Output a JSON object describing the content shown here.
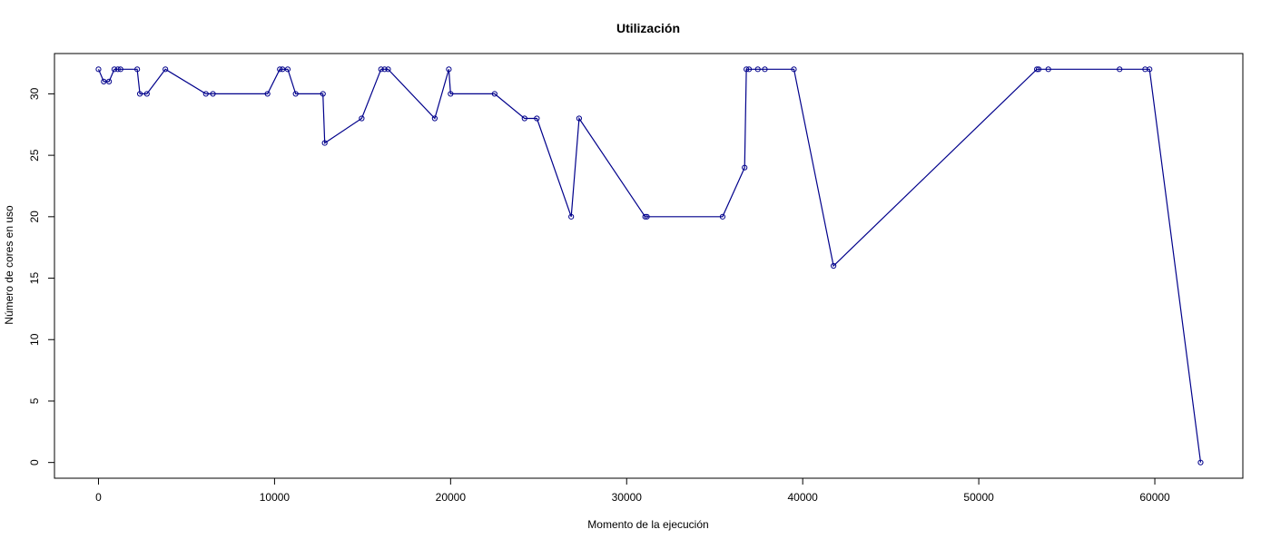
{
  "chart_data": {
    "type": "line",
    "title": "Utilización",
    "xlabel": "Momento de la ejecución",
    "ylabel": "Número de cores en uso",
    "xlim": [
      -2500,
      65000
    ],
    "ylim": [
      -1.28,
      33.28
    ],
    "x_ticks": [
      0,
      10000,
      20000,
      30000,
      40000,
      50000,
      60000
    ],
    "x_tick_labels": [
      "0",
      "10000",
      "20000",
      "30000",
      "40000",
      "50000",
      "60000"
    ],
    "y_ticks": [
      0,
      5,
      10,
      15,
      20,
      25,
      30
    ],
    "y_tick_labels": [
      "0",
      "5",
      "10",
      "15",
      "20",
      "25",
      "30"
    ],
    "grid": false,
    "line_color": "#00008b",
    "marker": "open-circle",
    "series": [
      {
        "x": [
          0,
          300,
          600,
          900,
          1100,
          1250,
          2200,
          2350,
          2750,
          3800,
          6100,
          6500,
          9600,
          10300,
          10450,
          10750,
          11200,
          12750,
          12850,
          14950,
          16050,
          16250,
          16450,
          19100,
          19900,
          20000,
          22500,
          24200,
          24900,
          26850,
          27300,
          31050,
          31150,
          35450,
          36700,
          36800,
          36950,
          37450,
          37850,
          39500,
          41750,
          53300,
          53400,
          53950,
          58000,
          59450,
          59700,
          62600
        ],
        "y": [
          32,
          31,
          31,
          32,
          32,
          32,
          32,
          30,
          30,
          32,
          30,
          30,
          30,
          32,
          32,
          32,
          30,
          30,
          26,
          28,
          32,
          32,
          32,
          28,
          32,
          30,
          30,
          28,
          28,
          20,
          28,
          20,
          20,
          20,
          24,
          32,
          32,
          32,
          32,
          32,
          16,
          32,
          32,
          32,
          32,
          32,
          32,
          0
        ]
      }
    ]
  }
}
